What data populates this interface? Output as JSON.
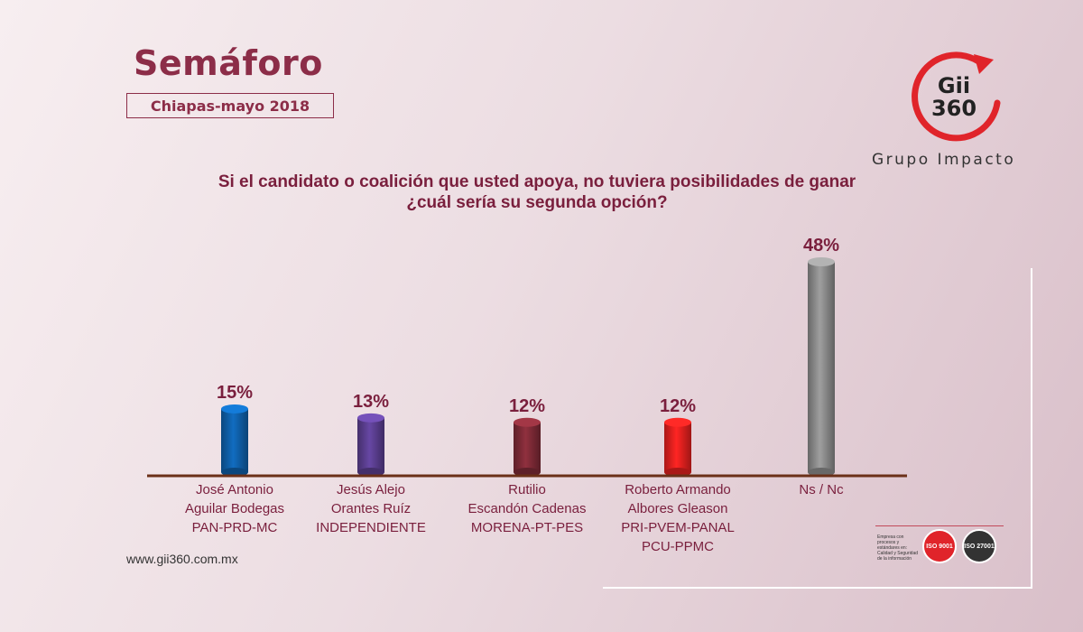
{
  "header": {
    "title": "Semáforo",
    "subtitle": "Chiapas-mayo 2018"
  },
  "logo": {
    "line1": "Gii",
    "line2": "360",
    "caption": "Grupo Impacto",
    "accent": "#e0242a"
  },
  "question": {
    "line1": "Si el candidato o coalición que usted apoya, no tuviera posibilidades de ganar",
    "line2": "¿cuál sería su segunda opción?"
  },
  "chart_data": {
    "type": "bar",
    "categories": [
      [
        "José Antonio",
        "Aguilar Bodegas",
        "PAN-PRD-MC"
      ],
      [
        "Jesús Alejo",
        "Orantes Ruíz",
        "INDEPENDIENTE"
      ],
      [
        "Rutilio",
        "Escandón Cadenas",
        "MORENA-PT-PES"
      ],
      [
        "Roberto Armando",
        "Albores Gleason",
        "PRI-PVEM-PANAL",
        "PCU-PPMC"
      ],
      [
        "Ns / Nc"
      ]
    ],
    "values": [
      15,
      13,
      12,
      12,
      48
    ],
    "value_labels": [
      "15%",
      "13%",
      "12%",
      "12%",
      "48%"
    ],
    "colors": [
      "#0f5fa8",
      "#5a3e8f",
      "#7d2a36",
      "#e3201e",
      "#8a8a8a"
    ],
    "ylim": [
      0,
      50
    ],
    "grid": false
  },
  "footer": {
    "website": "www.gii360.com.mx",
    "cert_text": "Empresa con procesos y estándares en: Calidad y Seguridad de la información",
    "badge1": "ISO 9001",
    "badge2": "ISO 27001"
  }
}
